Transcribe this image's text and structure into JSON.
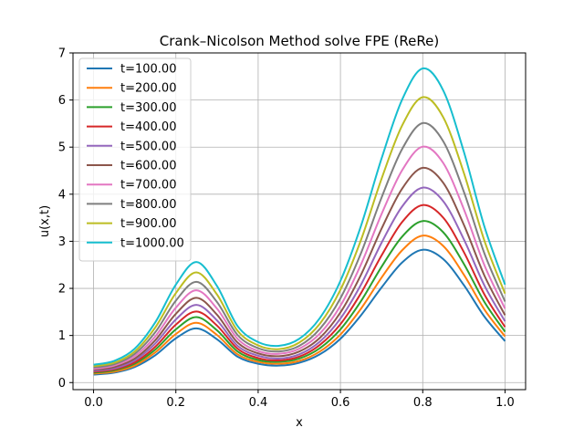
{
  "chart_data": {
    "type": "line",
    "title": "Crank–Nicolson Method solve FPE (ReRe)",
    "xlabel": "x",
    "ylabel": "u(x,t)",
    "xlim": [
      -0.05,
      1.05
    ],
    "ylim": [
      -0.15,
      7.0
    ],
    "xticks": [
      0.0,
      0.2,
      0.4,
      0.6,
      0.8,
      1.0
    ],
    "xtick_labels": [
      "0.0",
      "0.2",
      "0.4",
      "0.6",
      "0.8",
      "1.0"
    ],
    "yticks": [
      0,
      1,
      2,
      3,
      4,
      5,
      6,
      7
    ],
    "ytick_labels": [
      "0",
      "1",
      "2",
      "3",
      "4",
      "5",
      "6",
      "7"
    ],
    "grid": true,
    "legend_position": "upper-left",
    "x": [
      0.0,
      0.05,
      0.1,
      0.15,
      0.2,
      0.25,
      0.3,
      0.35,
      0.4,
      0.45,
      0.5,
      0.55,
      0.6,
      0.65,
      0.7,
      0.75,
      0.8,
      0.85,
      0.9,
      0.95,
      1.0
    ],
    "series": [
      {
        "name": "t=100.00",
        "color": "#1f77b4",
        "values": [
          0.17,
          0.21,
          0.33,
          0.58,
          0.94,
          1.15,
          0.92,
          0.55,
          0.4,
          0.36,
          0.42,
          0.6,
          0.93,
          1.43,
          2.02,
          2.55,
          2.82,
          2.62,
          2.07,
          1.4,
          0.88
        ]
      },
      {
        "name": "t=200.00",
        "color": "#ff7f0e",
        "values": [
          0.19,
          0.23,
          0.36,
          0.64,
          1.03,
          1.27,
          1.01,
          0.6,
          0.44,
          0.4,
          0.46,
          0.66,
          1.02,
          1.57,
          2.23,
          2.81,
          3.12,
          2.9,
          2.29,
          1.55,
          0.98
        ]
      },
      {
        "name": "t=300.00",
        "color": "#2ca02c",
        "values": [
          0.21,
          0.26,
          0.4,
          0.7,
          1.13,
          1.39,
          1.11,
          0.66,
          0.48,
          0.44,
          0.51,
          0.73,
          1.13,
          1.73,
          2.46,
          3.1,
          3.43,
          3.19,
          2.52,
          1.71,
          1.08
        ]
      },
      {
        "name": "t=400.00",
        "color": "#d62728",
        "values": [
          0.23,
          0.28,
          0.43,
          0.76,
          1.23,
          1.51,
          1.21,
          0.72,
          0.52,
          0.47,
          0.55,
          0.8,
          1.24,
          1.9,
          2.7,
          3.41,
          3.77,
          3.5,
          2.77,
          1.87,
          1.18
        ]
      },
      {
        "name": "t=500.00",
        "color": "#9467bd",
        "values": [
          0.25,
          0.3,
          0.47,
          0.83,
          1.34,
          1.65,
          1.32,
          0.78,
          0.57,
          0.51,
          0.6,
          0.87,
          1.36,
          2.08,
          2.97,
          3.74,
          4.14,
          3.85,
          3.04,
          2.06,
          1.3
        ]
      },
      {
        "name": "t=600.00",
        "color": "#8c564b",
        "values": [
          0.27,
          0.33,
          0.51,
          0.9,
          1.46,
          1.8,
          1.44,
          0.85,
          0.62,
          0.56,
          0.66,
          0.95,
          1.49,
          2.29,
          3.27,
          4.12,
          4.56,
          4.24,
          3.35,
          2.27,
          1.43
        ]
      },
      {
        "name": "t=700.00",
        "color": "#e377c2",
        "values": [
          0.29,
          0.36,
          0.56,
          0.98,
          1.59,
          1.96,
          1.57,
          0.93,
          0.67,
          0.61,
          0.72,
          1.04,
          1.63,
          2.51,
          3.58,
          4.51,
          5.01,
          4.66,
          3.68,
          2.49,
          1.57
        ]
      },
      {
        "name": "t=800.00",
        "color": "#7f7f7f",
        "values": [
          0.32,
          0.39,
          0.61,
          1.07,
          1.74,
          2.14,
          1.71,
          1.01,
          0.73,
          0.66,
          0.78,
          1.14,
          1.79,
          2.75,
          3.93,
          4.96,
          5.51,
          5.12,
          4.05,
          2.74,
          1.72
        ]
      },
      {
        "name": "t=900.00",
        "color": "#bcbd22",
        "values": [
          0.35,
          0.42,
          0.66,
          1.17,
          1.9,
          2.34,
          1.87,
          1.1,
          0.79,
          0.71,
          0.85,
          1.25,
          1.97,
          3.03,
          4.33,
          5.46,
          6.06,
          5.63,
          4.45,
          3.01,
          1.89
        ]
      },
      {
        "name": "t=1000.00",
        "color": "#17becf",
        "values": [
          0.38,
          0.46,
          0.72,
          1.28,
          2.08,
          2.56,
          2.05,
          1.2,
          0.86,
          0.78,
          0.93,
          1.37,
          2.16,
          3.33,
          4.76,
          6.01,
          6.67,
          6.2,
          4.9,
          3.31,
          2.08
        ]
      }
    ]
  }
}
